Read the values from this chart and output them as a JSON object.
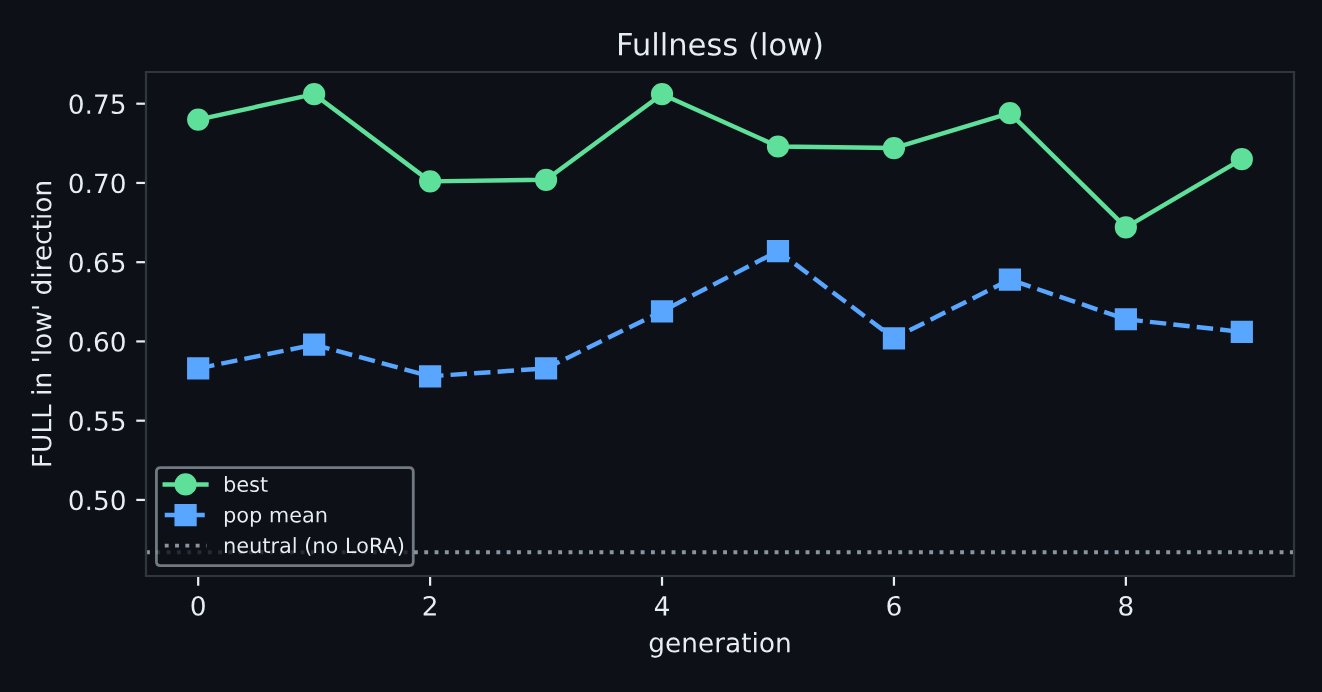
{
  "chart_data": {
    "type": "line",
    "title": "Fullness (low)",
    "xlabel": "generation",
    "ylabel": "FULL in 'low' direction",
    "x": [
      0,
      1,
      2,
      3,
      4,
      5,
      6,
      7,
      8,
      9
    ],
    "series": [
      {
        "name": "best",
        "color": "#5ee09a",
        "values": [
          0.74,
          0.756,
          0.701,
          0.702,
          0.756,
          0.723,
          0.722,
          0.744,
          0.672,
          0.715
        ],
        "marker": "circle",
        "line_style": "solid"
      },
      {
        "name": "pop mean",
        "color": "#58a6ff",
        "values": [
          0.583,
          0.598,
          0.578,
          0.583,
          0.619,
          0.657,
          0.602,
          0.639,
          0.614,
          0.606
        ],
        "marker": "square",
        "line_style": "dashed"
      }
    ],
    "ref_lines": [
      {
        "axis": "y",
        "value": 0.467,
        "label": "neutral (no LoRA)",
        "color": "#8b949e",
        "line_style": "dotted"
      }
    ],
    "xlim": [
      -0.45,
      9.45
    ],
    "ylim": [
      0.452,
      0.77
    ],
    "xticks": [
      0,
      2,
      4,
      6,
      8
    ],
    "yticks": [
      {
        "value": 0.5,
        "label": "0.50"
      },
      {
        "value": 0.55,
        "label": "0.55"
      },
      {
        "value": 0.6,
        "label": "0.60"
      },
      {
        "value": 0.65,
        "label": "0.65"
      },
      {
        "value": 0.7,
        "label": "0.70"
      },
      {
        "value": 0.75,
        "label": "0.75"
      }
    ],
    "grid": false,
    "legend": "bottom left"
  }
}
